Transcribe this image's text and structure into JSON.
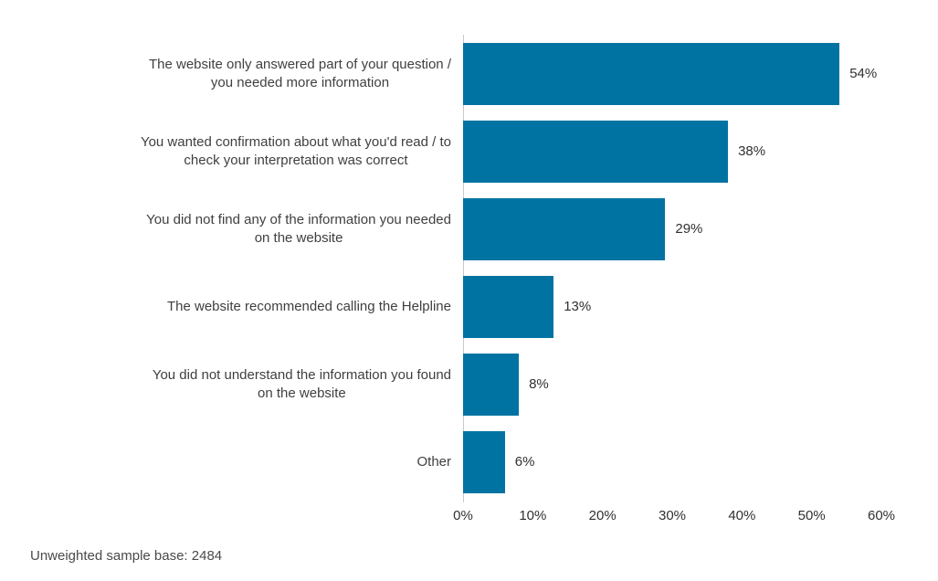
{
  "chart_data": {
    "type": "bar",
    "orientation": "horizontal",
    "title": "",
    "xlabel": "",
    "ylabel": "",
    "xlim": [
      0,
      60
    ],
    "grid": false,
    "legend": false,
    "bar_color": "#0073a3",
    "axis_line_color": "#c9c9c9",
    "categories": [
      "The website only answered part of your question /\nyou needed more information",
      "You wanted confirmation about what you'd read / to\ncheck your interpretation was correct",
      "You did not find any of the information you needed\non the website",
      "The website recommended calling the Helpline",
      "You did not understand the information you found\non the website",
      "Other"
    ],
    "values": [
      54,
      38,
      29,
      13,
      8,
      6
    ],
    "value_labels": [
      "54%",
      "38%",
      "29%",
      "13%",
      "8%",
      "6%"
    ],
    "x_ticks": [
      "0%",
      "10%",
      "20%",
      "30%",
      "40%",
      "50%",
      "60%"
    ],
    "footnote": "Unweighted sample base: 2484"
  }
}
